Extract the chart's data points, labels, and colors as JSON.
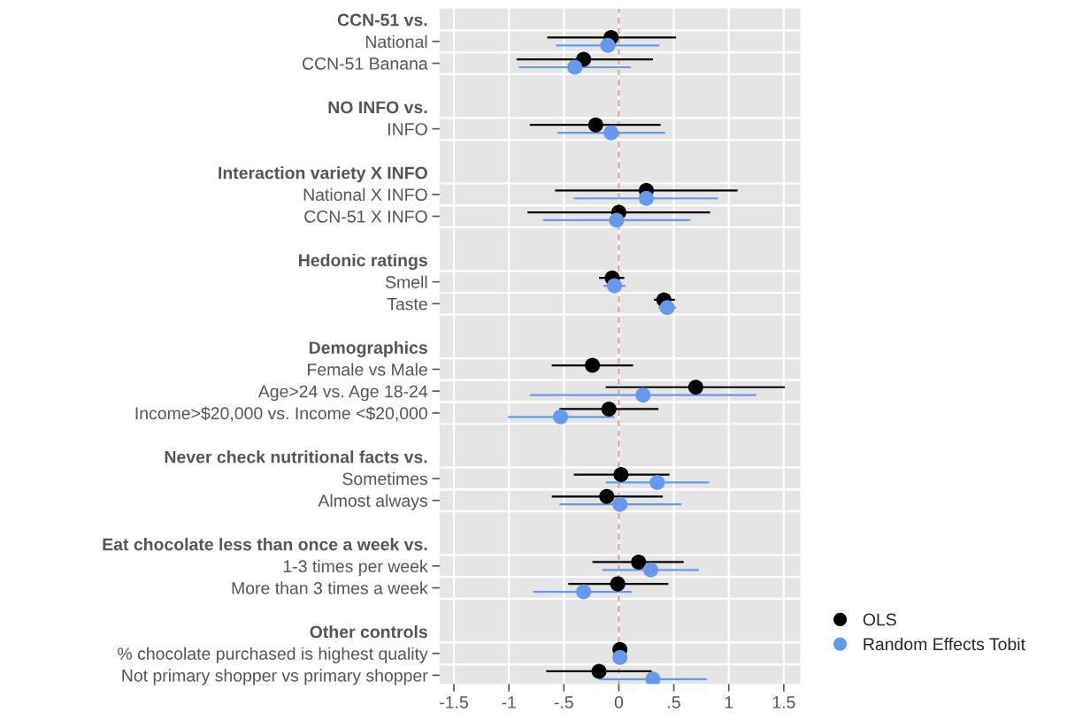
{
  "chart_data": {
    "type": "scatter",
    "orientation": "horizontal",
    "categories": [
      "CCN-51 vs.",
      "National",
      "CCN-51 Banana",
      null,
      "NO INFO vs.",
      "INFO",
      null,
      "Interaction variety X INFO",
      "National X INFO",
      "CCN-51 X INFO",
      null,
      "Hedonic ratings",
      "Smell",
      "Taste",
      null,
      "Demographics",
      "Female vs Male",
      "Age>24 vs. Age 18-24",
      "Income>$20,000 vs. Income <$20,000",
      null,
      "Never check nutritional facts vs.",
      "Sometimes",
      "Almost always",
      null,
      "Eat chocolate less than once a week vs.",
      "1-3 times per week",
      "More than 3 times a week",
      null,
      "Other controls",
      "% chocolate purchased is highest quality",
      "Not primary shopper vs primary shopper"
    ],
    "series": [
      {
        "name": "OLS",
        "color": "#000000",
        "values": [
          null,
          -0.07,
          -0.32,
          null,
          null,
          -0.21,
          null,
          null,
          0.25,
          0.0,
          null,
          null,
          -0.06,
          0.41,
          null,
          null,
          -0.24,
          0.7,
          -0.09,
          null,
          null,
          0.02,
          -0.11,
          null,
          null,
          0.18,
          -0.01,
          null,
          null,
          0.01,
          -0.18
        ],
        "errors": [
          null,
          [
            -0.65,
            0.52
          ],
          [
            -0.93,
            0.31
          ],
          null,
          null,
          [
            -0.81,
            0.38
          ],
          null,
          null,
          [
            -0.58,
            1.08
          ],
          [
            -0.83,
            0.83
          ],
          null,
          null,
          [
            -0.18,
            0.05
          ],
          [
            0.32,
            0.51
          ],
          null,
          null,
          [
            -0.61,
            0.13
          ],
          [
            -0.12,
            1.51
          ],
          [
            -0.54,
            0.36
          ],
          null,
          null,
          [
            -0.41,
            0.46
          ],
          [
            -0.61,
            0.4
          ],
          null,
          null,
          [
            -0.24,
            0.59
          ],
          [
            -0.46,
            0.45
          ],
          null,
          null,
          null,
          [
            -0.66,
            0.3
          ]
        ]
      },
      {
        "name": "Random Effects Tobit",
        "color": "#6699ee",
        "values": [
          null,
          -0.1,
          -0.4,
          null,
          null,
          -0.07,
          null,
          null,
          0.25,
          -0.02,
          null,
          null,
          -0.04,
          0.44,
          null,
          null,
          null,
          0.22,
          -0.53,
          null,
          null,
          0.35,
          0.01,
          null,
          null,
          0.29,
          -0.32,
          null,
          null,
          0.01,
          0.31
        ],
        "errors": [
          null,
          [
            -0.57,
            0.37
          ],
          [
            -0.91,
            0.11
          ],
          null,
          null,
          [
            -0.56,
            0.42
          ],
          null,
          null,
          [
            -0.41,
            0.9
          ],
          [
            -0.69,
            0.65
          ],
          null,
          null,
          [
            -0.14,
            0.06
          ],
          [
            0.36,
            0.52
          ],
          null,
          null,
          null,
          [
            -0.81,
            1.25
          ],
          [
            -1.01,
            -0.04
          ],
          null,
          null,
          [
            -0.12,
            0.82
          ],
          [
            -0.54,
            0.57
          ],
          null,
          null,
          [
            -0.15,
            0.73
          ],
          [
            -0.78,
            0.12
          ],
          null,
          null,
          null,
          [
            -0.18,
            0.8
          ]
        ]
      }
    ],
    "xlim": [
      -1.63,
      1.65
    ],
    "xticks": [
      {
        "value": -1.5,
        "label": "-1.5"
      },
      {
        "value": -1,
        "label": "-1"
      },
      {
        "value": -0.5,
        "label": "-.5"
      },
      {
        "value": 0,
        "label": "0"
      },
      {
        "value": 0.5,
        "label": ".5"
      },
      {
        "value": 1,
        "label": "1"
      },
      {
        "value": 1.5,
        "label": "1.5"
      }
    ],
    "ref_lines": [
      {
        "axis": "x",
        "value": 0,
        "color": "#e8837a",
        "line_style": "dashed"
      }
    ],
    "grid": true,
    "legend": "right",
    "marker": "circle"
  }
}
